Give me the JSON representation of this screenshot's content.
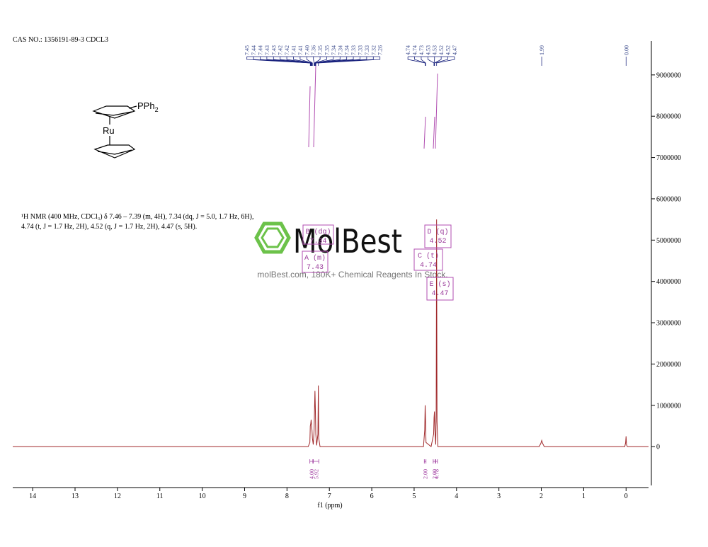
{
  "chart_data": {
    "type": "line",
    "title": "CAS NO.: 1356191-89-3 CDCL3",
    "xlabel": "f1 (ppm)",
    "xlim": [
      14.47,
      -0.53
    ],
    "xticks": [
      14,
      13,
      12,
      11,
      10,
      9,
      8,
      7,
      6,
      5,
      4,
      3,
      2,
      1,
      0
    ],
    "ylim": [
      -940000,
      9820000
    ],
    "yticks": [
      0,
      1000000,
      2000000,
      3000000,
      4000000,
      5000000,
      6000000,
      7000000,
      8000000,
      9000000
    ],
    "series": [
      {
        "color": "#a0282a",
        "x": [
          14.47,
          7.8,
          7.5,
          7.46,
          7.45,
          7.44,
          7.43,
          7.42,
          7.41,
          7.4,
          7.38,
          7.36,
          7.35,
          7.34,
          7.33,
          7.32,
          7.3,
          7.27,
          7.26,
          7.25,
          7.22,
          4.78,
          4.75,
          4.74,
          4.73,
          4.72,
          4.6,
          4.54,
          4.53,
          4.52,
          4.51,
          4.49,
          4.48,
          4.47,
          4.46,
          4.44,
          2.05,
          2.01,
          1.99,
          1.97,
          1.93,
          0.03,
          0.01,
          0.0,
          -0.01,
          -0.03,
          -0.53
        ],
        "values": [
          0,
          0,
          0,
          100000,
          500000,
          550000,
          650000,
          500000,
          400000,
          200000,
          50000,
          400000,
          900000,
          1350000,
          900000,
          300000,
          30000,
          300000,
          1480000,
          200000,
          0,
          0,
          400000,
          1000000,
          600000,
          100000,
          0,
          300000,
          700000,
          850000,
          400000,
          50000,
          800000,
          5500000,
          600000,
          0,
          0,
          80000,
          150000,
          80000,
          0,
          0,
          100000,
          250000,
          50000,
          0,
          0
        ]
      }
    ],
    "peak_labels": [
      {
        "value": 7.45,
        "label": "7.45"
      },
      {
        "value": 7.44,
        "label": "7.44"
      },
      {
        "value": 7.44,
        "label": "7.44"
      },
      {
        "value": 7.43,
        "label": "7.43"
      },
      {
        "value": 7.43,
        "label": "7.43"
      },
      {
        "value": 7.42,
        "label": "7.42"
      },
      {
        "value": 7.42,
        "label": "7.42"
      },
      {
        "value": 7.41,
        "label": "7.41"
      },
      {
        "value": 7.41,
        "label": "7.41"
      },
      {
        "value": 7.4,
        "label": "7.40"
      },
      {
        "value": 7.36,
        "label": "7.36"
      },
      {
        "value": 7.35,
        "label": "7.35"
      },
      {
        "value": 7.35,
        "label": "7.35"
      },
      {
        "value": 7.34,
        "label": "7.34"
      },
      {
        "value": 7.34,
        "label": "7.34"
      },
      {
        "value": 7.34,
        "label": "7.34"
      },
      {
        "value": 7.33,
        "label": "7.33"
      },
      {
        "value": 7.33,
        "label": "7.33"
      },
      {
        "value": 7.33,
        "label": "7.33"
      },
      {
        "value": 7.32,
        "label": "7.32"
      },
      {
        "value": 7.26,
        "label": "7.26"
      },
      {
        "value": 4.74,
        "label": "4.74"
      },
      {
        "value": 4.74,
        "label": "4.74"
      },
      {
        "value": 4.73,
        "label": "4.73"
      },
      {
        "value": 4.53,
        "label": "4.53"
      },
      {
        "value": 4.53,
        "label": "4.53"
      },
      {
        "value": 4.52,
        "label": "4.52"
      },
      {
        "value": 4.52,
        "label": "4.52"
      },
      {
        "value": 4.47,
        "label": "4.47"
      },
      {
        "value": 1.99,
        "label": "1.99"
      },
      {
        "value": 0.0,
        "label": "0.00"
      }
    ],
    "integrals": [
      {
        "range": [
          7.46,
          7.39
        ],
        "value": 4.0,
        "label": "4.00"
      },
      {
        "range": [
          7.38,
          7.25
        ],
        "value": 5.92,
        "label": "5.92"
      },
      {
        "range": [
          4.76,
          4.72
        ],
        "value": 2.0,
        "label": "2.00"
      },
      {
        "range": [
          4.55,
          4.5
        ],
        "value": 2.0,
        "label": "2.00"
      },
      {
        "range": [
          4.49,
          4.45
        ],
        "value": 4.78,
        "label": "4.78"
      }
    ],
    "multiplets": [
      {
        "label": "A (m)",
        "shift": 7.43
      },
      {
        "label": "B (dq)",
        "shift": 7.34
      },
      {
        "label": "C (t)",
        "shift": 4.74
      },
      {
        "label": "D (q)",
        "shift": 4.52
      },
      {
        "label": "E (s)",
        "shift": 4.47
      }
    ],
    "description": [
      "¹H NMR (400 MHz, CDCl₃) δ 7.46 – 7.39 (m, 4H), 7.34 (dq, J = 5.0, 1.7 Hz, 6H),",
      "4.74 (t, J = 1.7 Hz, 2H), 4.52 (q, J = 1.7 Hz, 2H), 4.47 (s, 5H)."
    ],
    "structure": {
      "substituent": [
        "PPh",
        "2"
      ],
      "metal": "Ru"
    },
    "watermark": {
      "brand": "MolBest",
      "tagline": "molBest.com, 180K+ Chemical Reagents In Stock."
    }
  }
}
